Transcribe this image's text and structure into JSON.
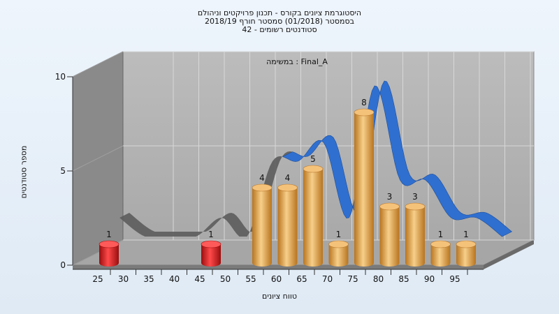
{
  "chart_data": {
    "type": "bar",
    "title_lines": [
      "היסטוגרמת ציונים בקורס - תכנון פרויקטים וניהולם",
      "בסמסטר  (01/2018)  סמסטר חורף 2018/19",
      "סטודנטים רשומים - 42"
    ],
    "subtitle": "במשימה : Final_A",
    "xlabel": "טווח ציונים",
    "ylabel": "מספר סטודנטים",
    "x_ticks": [
      "25",
      "30",
      "35",
      "40",
      "45",
      "50",
      "55",
      "60",
      "65",
      "70",
      "75",
      "80",
      "85",
      "90",
      "95"
    ],
    "y_ticks": [
      0,
      5,
      10
    ],
    "ylim": [
      0,
      10
    ],
    "bins": [
      {
        "x": 25,
        "value": 1,
        "color": "#d11a1a"
      },
      {
        "x": 45,
        "value": 1,
        "color": "#d11a1a"
      },
      {
        "x": 55,
        "value": 4,
        "color": "#e0a040"
      },
      {
        "x": 60,
        "value": 4,
        "color": "#e0a040"
      },
      {
        "x": 65,
        "value": 5,
        "color": "#e0a040"
      },
      {
        "x": 70,
        "value": 1,
        "color": "#e0a040"
      },
      {
        "x": 75,
        "value": 8,
        "color": "#e0a040"
      },
      {
        "x": 80,
        "value": 3,
        "color": "#e0a040"
      },
      {
        "x": 85,
        "value": 3,
        "color": "#e0a040"
      },
      {
        "x": 90,
        "value": 1,
        "color": "#e0a040"
      },
      {
        "x": 95,
        "value": 1,
        "color": "#e0a040"
      }
    ]
  }
}
